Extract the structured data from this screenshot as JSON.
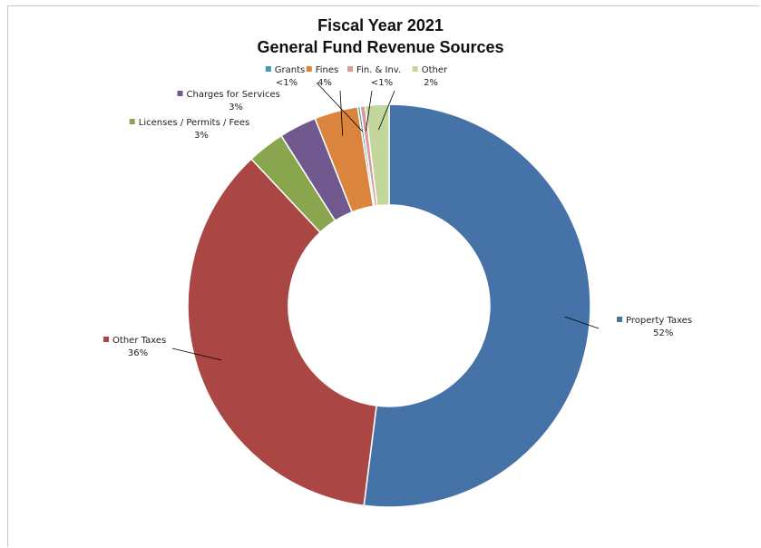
{
  "chart_data": {
    "type": "pie",
    "title_line1": "Fiscal Year 2021",
    "title_line2": "General Fund Revenue Sources",
    "slices": [
      {
        "name": "Property Taxes",
        "value": 52,
        "label": "52%",
        "color": "#4572A7"
      },
      {
        "name": "Other Taxes",
        "value": 36,
        "label": "36%",
        "color": "#AA4643"
      },
      {
        "name": "Licenses / Permits / Fees",
        "value": 3,
        "label": "3%",
        "color": "#89A54E"
      },
      {
        "name": "Charges for Services",
        "value": 3,
        "label": "3%",
        "color": "#71588F"
      },
      {
        "name": "Fines",
        "value": 3.5,
        "label": "4%",
        "color": "#DB843D"
      },
      {
        "name": "Grants",
        "value": 0.2,
        "label": "<1%",
        "color": "#4198AF"
      },
      {
        "name": "Fin. & Inv.",
        "value": 0.4,
        "label": "<1%",
        "color": "#D99A99"
      },
      {
        "name": "Other",
        "value": 1.9,
        "label": "2%",
        "color": "#C3D69B"
      }
    ]
  }
}
